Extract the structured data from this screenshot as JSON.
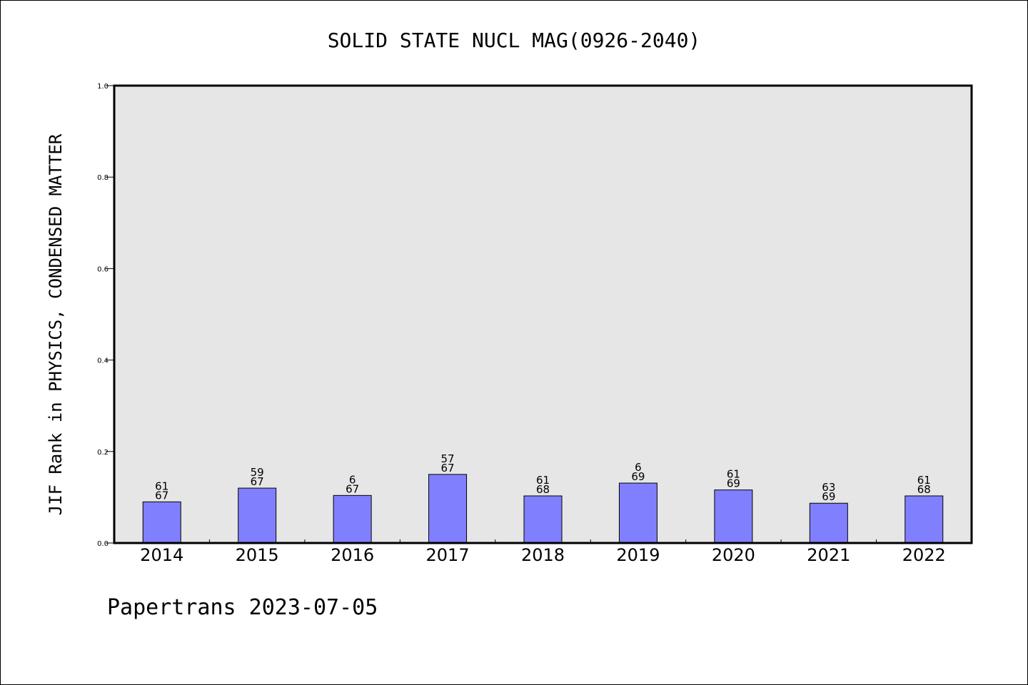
{
  "footer": {
    "text": "Papertrans 2023-07-05"
  },
  "colors": {
    "plot_background": "#e6e6e6",
    "bar_fill": "#8080ff",
    "bar_stroke": "#000000",
    "axis": "#000000"
  },
  "chart_data": {
    "type": "bar",
    "title": "SOLID STATE NUCL MAG(0926-2040)",
    "xlabel": "",
    "ylabel": "JIF Rank in PHYSICS, CONDENSED MATTER",
    "ylim": [
      0.0,
      1.0
    ],
    "yticks": [
      "0.0",
      "0.2",
      "0.4",
      "0.6",
      "0.8",
      "1.0"
    ],
    "grid": false,
    "categories": [
      "2014",
      "2015",
      "2016",
      "2017",
      "2018",
      "2019",
      "2020",
      "2021",
      "2022"
    ],
    "values": [
      0.09,
      0.12,
      0.104,
      0.15,
      0.103,
      0.131,
      0.116,
      0.087,
      0.103
    ],
    "rank": [
      "61",
      "59",
      "6",
      "57",
      "61",
      "6",
      "61",
      "63",
      "61"
    ],
    "total": [
      "67",
      "67",
      "67",
      "67",
      "68",
      "69",
      "69",
      "69",
      "68"
    ]
  }
}
